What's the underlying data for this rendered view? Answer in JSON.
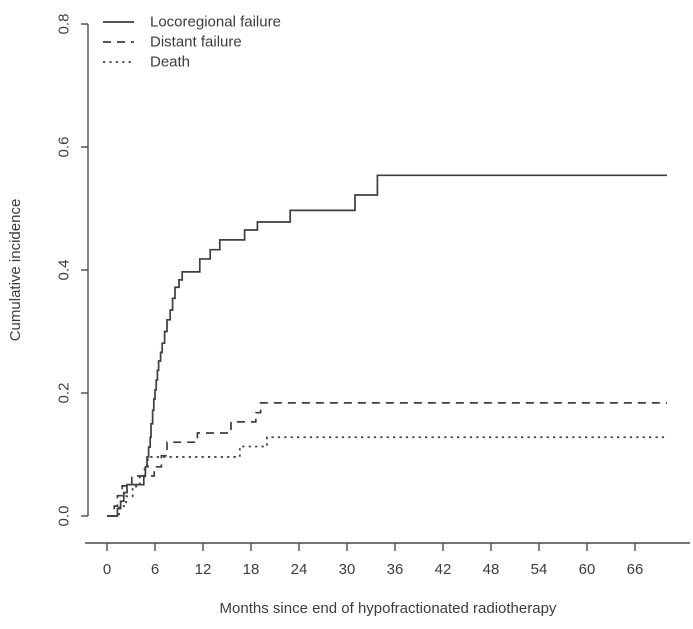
{
  "figure": {
    "background": "#ffffff",
    "axis_color": "#4a4a4a",
    "line_color": "#3e3e3e",
    "text_color": "#3d3d3d"
  },
  "chart_data": {
    "type": "line",
    "subtype": "step-cumulative-incidence",
    "title": "",
    "xlabel": "Months since end of hypofractionated radiotherapy",
    "ylabel": "Cumulative incidence",
    "xlim": [
      0,
      70
    ],
    "ylim": [
      0,
      0.8
    ],
    "x_ticks": [
      0,
      6,
      12,
      18,
      24,
      30,
      36,
      42,
      48,
      54,
      60,
      66
    ],
    "y_ticks": [
      0.0,
      0.2,
      0.4,
      0.6,
      0.8
    ],
    "grid": false,
    "legend_position": "top-left",
    "series": [
      {
        "name": "Locoregional failure",
        "line_style": "solid",
        "final_value": 0.55,
        "steps": [
          [
            0,
            0
          ],
          [
            1.3,
            0.012
          ],
          [
            1.7,
            0.024
          ],
          [
            2.1,
            0.038
          ],
          [
            2.5,
            0.051
          ],
          [
            4.6,
            0.065
          ],
          [
            4.8,
            0.08
          ],
          [
            5.0,
            0.096
          ],
          [
            5.2,
            0.112
          ],
          [
            5.4,
            0.128
          ],
          [
            5.5,
            0.15
          ],
          [
            5.7,
            0.172
          ],
          [
            5.85,
            0.19
          ],
          [
            6.0,
            0.205
          ],
          [
            6.15,
            0.221
          ],
          [
            6.3,
            0.237
          ],
          [
            6.45,
            0.252
          ],
          [
            6.7,
            0.266
          ],
          [
            6.9,
            0.281
          ],
          [
            7.2,
            0.3
          ],
          [
            7.5,
            0.319
          ],
          [
            7.9,
            0.335
          ],
          [
            8.2,
            0.354
          ],
          [
            8.5,
            0.372
          ],
          [
            9.0,
            0.384
          ],
          [
            9.4,
            0.397
          ],
          [
            11.6,
            0.418
          ],
          [
            12.9,
            0.433
          ],
          [
            14.1,
            0.449
          ],
          [
            17.2,
            0.465
          ],
          [
            18.8,
            0.478
          ],
          [
            22.9,
            0.497
          ],
          [
            31.0,
            0.522
          ],
          [
            33.8,
            0.554
          ],
          [
            70,
            0.554
          ]
        ]
      },
      {
        "name": "Distant failure",
        "line_style": "dashed",
        "final_value": 0.185,
        "steps": [
          [
            0,
            0
          ],
          [
            0.9,
            0.016
          ],
          [
            1.3,
            0.033
          ],
          [
            1.9,
            0.049
          ],
          [
            3.1,
            0.065
          ],
          [
            5.9,
            0.08
          ],
          [
            6.8,
            0.098
          ],
          [
            7.5,
            0.12
          ],
          [
            11.3,
            0.135
          ],
          [
            15.5,
            0.153
          ],
          [
            18.6,
            0.168
          ],
          [
            19.2,
            0.184
          ],
          [
            70,
            0.184
          ]
        ]
      },
      {
        "name": "Death",
        "line_style": "dotted",
        "final_value": 0.13,
        "steps": [
          [
            0,
            0
          ],
          [
            1.5,
            0.016
          ],
          [
            2.4,
            0.032
          ],
          [
            3.2,
            0.048
          ],
          [
            4.1,
            0.064
          ],
          [
            4.7,
            0.08
          ],
          [
            5.1,
            0.096
          ],
          [
            16.6,
            0.113
          ],
          [
            20.0,
            0.128
          ],
          [
            70,
            0.128
          ]
        ]
      }
    ]
  }
}
